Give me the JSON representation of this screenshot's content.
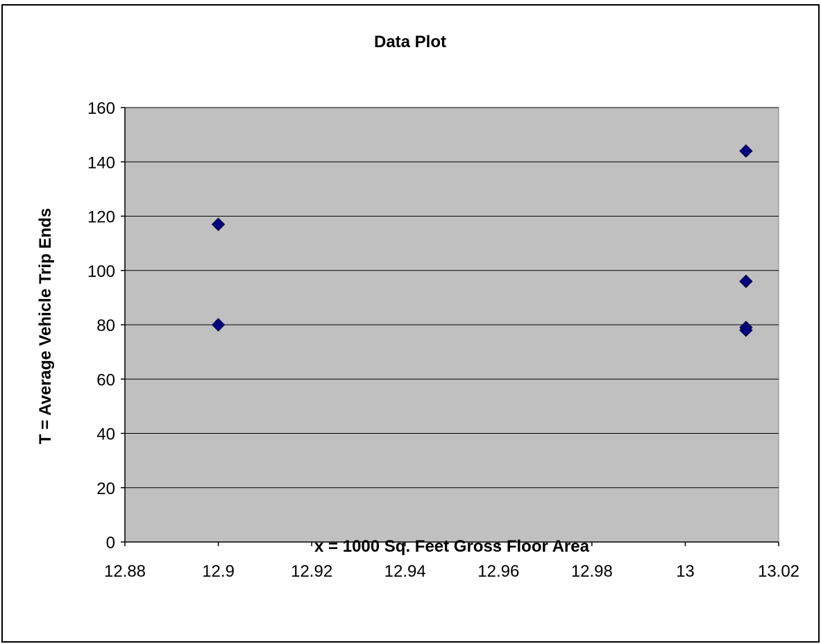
{
  "chart_data": {
    "type": "scatter",
    "title": "Data Plot",
    "xlabel": "x = 1000 Sq. Feet Gross Floor Area",
    "ylabel": "T = Average Vehicle Trip Ends",
    "xlim": [
      12.88,
      13.02
    ],
    "ylim": [
      0,
      160
    ],
    "xticks": [
      12.88,
      12.9,
      12.92,
      12.94,
      12.96,
      12.98,
      13,
      13.02
    ],
    "xtick_labels": [
      "12.88",
      "12.9",
      "12.92",
      "12.94",
      "12.96",
      "12.98",
      "13",
      "13.02"
    ],
    "yticks": [
      0,
      20,
      40,
      60,
      80,
      100,
      120,
      140,
      160
    ],
    "ytick_labels": [
      "0",
      "20",
      "40",
      "60",
      "80",
      "100",
      "120",
      "140",
      "160"
    ],
    "grid": "horizontal",
    "legend": "none",
    "plot_background": "#c0c0c0",
    "marker": "diamond",
    "marker_color": "#000080",
    "series": [
      {
        "x": [
          12.9,
          12.9,
          13.013,
          13.013,
          13.013,
          13.013
        ],
        "y": [
          117,
          80,
          144,
          96,
          79,
          78
        ]
      }
    ]
  }
}
